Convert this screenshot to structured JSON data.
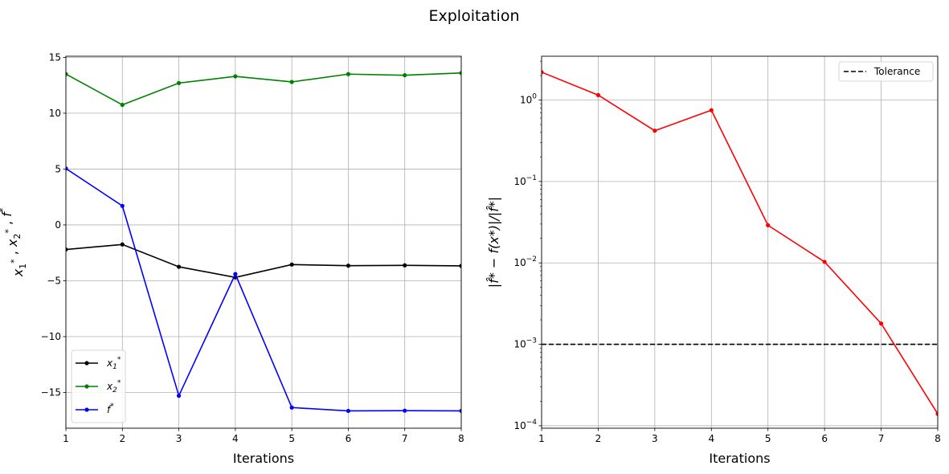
{
  "figure": {
    "suptitle": "Exploitation"
  },
  "chart_data": [
    {
      "type": "line",
      "xlabel": "Iterations",
      "ylabel_parts": [
        "x",
        "1",
        "*",
        " , ",
        "x",
        "2",
        "*",
        " , ",
        "f",
        "*"
      ],
      "xlim": [
        1,
        8
      ],
      "ylim": [
        -18.2,
        15.1
      ],
      "xticks": [
        1,
        2,
        3,
        4,
        5,
        6,
        7,
        8
      ],
      "yticks": [
        15,
        10,
        5,
        0,
        -5,
        -10,
        -15
      ],
      "ytick_labels": [
        "15",
        "10",
        "5",
        "0",
        "−5",
        "−10",
        "−15"
      ],
      "grid": true,
      "legend": "lower-left",
      "x": [
        1,
        2,
        3,
        4,
        5,
        6,
        7,
        8
      ],
      "series": [
        {
          "name": "x1*",
          "name_base": "x",
          "name_sub": "1",
          "name_sup": "*",
          "color": "#000000",
          "values": [
            -2.2,
            -1.75,
            -3.75,
            -4.7,
            -3.55,
            -3.65,
            -3.62,
            -3.67
          ]
        },
        {
          "name": "x2*",
          "name_base": "x",
          "name_sub": "2",
          "name_sup": "*",
          "color": "#008000",
          "values": [
            13.5,
            10.75,
            12.7,
            13.3,
            12.8,
            13.5,
            13.4,
            13.6
          ]
        },
        {
          "name": "f*",
          "name_base": "f",
          "name_sub": "",
          "name_sup": "*",
          "color": "#0000ff",
          "values": [
            5.05,
            1.7,
            -15.3,
            -4.4,
            -16.35,
            -16.65,
            -16.63,
            -16.65
          ]
        }
      ]
    },
    {
      "type": "line",
      "xlabel": "Iterations",
      "ylabel_text": "|f̂* − f(x*)|/|f̂*|",
      "yscale": "log",
      "xlim": [
        1,
        8
      ],
      "ylim": [
        9.33e-05,
        3.45
      ],
      "xticks": [
        1,
        2,
        3,
        4,
        5,
        6,
        7,
        8
      ],
      "yticks": [
        0.0001,
        0.001,
        0.01,
        0.1,
        1
      ],
      "ytick_exponents": [
        "−4",
        "−3",
        "−2",
        "−1",
        "0"
      ],
      "ytick_base": "10",
      "grid": true,
      "legend": "upper-right",
      "x": [
        1,
        2,
        3,
        4,
        5,
        6,
        7,
        8
      ],
      "series": [
        {
          "name": "",
          "color": "#ff0000",
          "values": [
            2.2,
            1.15,
            0.42,
            0.75,
            0.029,
            0.0103,
            0.0018,
            0.00014
          ]
        }
      ],
      "hlines": [
        {
          "name": "Tolerance",
          "value": 0.001,
          "color": "#000000",
          "dash": true
        }
      ]
    }
  ]
}
